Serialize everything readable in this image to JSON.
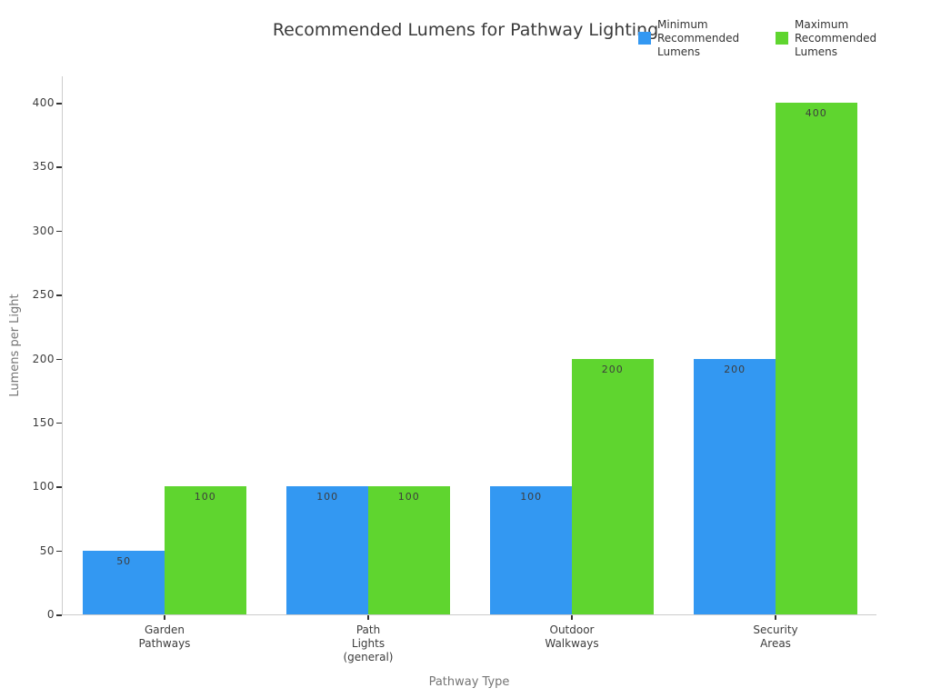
{
  "chart_data": {
    "type": "bar",
    "title": "Recommended Lumens for Pathway Lighting",
    "xlabel": "Pathway Type",
    "ylabel": "Lumens per Light",
    "categories": [
      "Garden Pathways",
      "Path Lights (general)",
      "Outdoor Walkways",
      "Security Areas"
    ],
    "category_tick_lines": [
      [
        "Garden",
        "Pathways"
      ],
      [
        "Path",
        "Lights",
        "(general)"
      ],
      [
        "Outdoor",
        "Walkways"
      ],
      [
        "Security",
        "Areas"
      ]
    ],
    "series": [
      {
        "name": "Minimum Recommended Lumens",
        "color": "#3398f2",
        "values": [
          50,
          100,
          100,
          200
        ]
      },
      {
        "name": "Maximum Recommended Lumens",
        "color": "#5fd52f",
        "values": [
          100,
          100,
          200,
          400
        ]
      }
    ],
    "ylim": [
      0,
      400
    ],
    "yticks": [
      0,
      50,
      100,
      150,
      200,
      250,
      300,
      350,
      400
    ],
    "grid": false,
    "legend_position": "top-right",
    "bar_labels": true,
    "styles": {
      "background": "#ffffff",
      "axis_line_color": "#cccccc",
      "tick_color": "#333333",
      "tick_label_color": "#3d3d3d",
      "axis_title_color": "#757575",
      "title_color": "#3a3a3a"
    }
  }
}
